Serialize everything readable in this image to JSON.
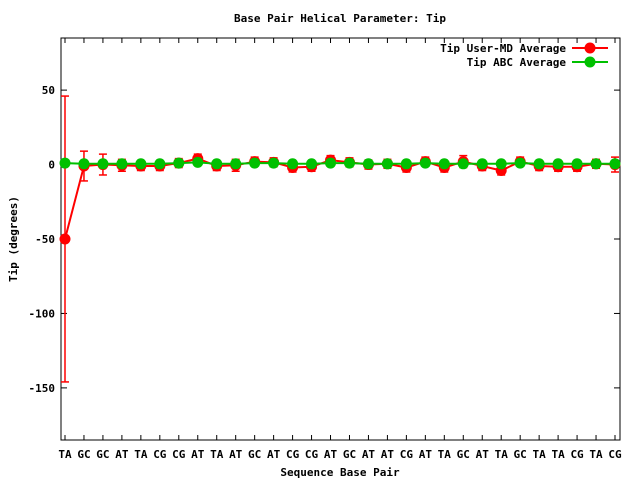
{
  "chart_data": {
    "type": "line",
    "title": "Base Pair Helical Parameter: Tip",
    "xlabel": "Sequence Base Pair",
    "ylabel": "Tip (degrees)",
    "categories": [
      "TA",
      "GC",
      "GC",
      "AT",
      "TA",
      "CG",
      "CG",
      "AT",
      "TA",
      "AT",
      "GC",
      "AT",
      "CG",
      "CG",
      "AT",
      "GC",
      "AT",
      "AT",
      "CG",
      "AT",
      "TA",
      "GC",
      "AT",
      "TA",
      "GC",
      "TA",
      "TA",
      "CG",
      "TA",
      "CG"
    ],
    "ylim": [
      -185,
      85
    ],
    "yticks": [
      50,
      0,
      -50,
      -100,
      -150
    ],
    "ytick_labels": [
      "50",
      "0",
      "-50",
      "-100",
      "-150"
    ],
    "grid": false,
    "legend_position": "top-right",
    "series": [
      {
        "name": "Tip User-MD Average",
        "color": "#ff0000",
        "values": [
          -50,
          -1,
          0,
          -0.5,
          -1,
          -1,
          1,
          4,
          -1,
          -0.5,
          2,
          1.5,
          -2,
          -1.5,
          3,
          1.5,
          0,
          0.5,
          -2,
          2,
          -2,
          2,
          -1,
          -4,
          2,
          -1,
          -1.5,
          -1.5,
          0.5,
          0
        ],
        "errors": [
          96,
          10,
          7,
          4,
          3,
          3,
          3,
          3,
          3,
          4,
          3,
          3,
          3,
          3,
          3,
          3,
          3,
          3,
          3,
          3,
          3,
          4,
          3,
          3,
          3,
          3,
          3,
          3,
          3,
          5
        ]
      },
      {
        "name": "Tip ABC Average",
        "color": "#00c000",
        "values": [
          1,
          0.5,
          0.5,
          0.5,
          0.5,
          0.5,
          1,
          1.5,
          0.5,
          0.5,
          1,
          1,
          0.5,
          0.5,
          1,
          1,
          0.5,
          0.5,
          0.5,
          1,
          0.5,
          0.5,
          0.5,
          0.5,
          1,
          0.5,
          0.5,
          0.5,
          0.5,
          0.5
        ]
      }
    ]
  }
}
